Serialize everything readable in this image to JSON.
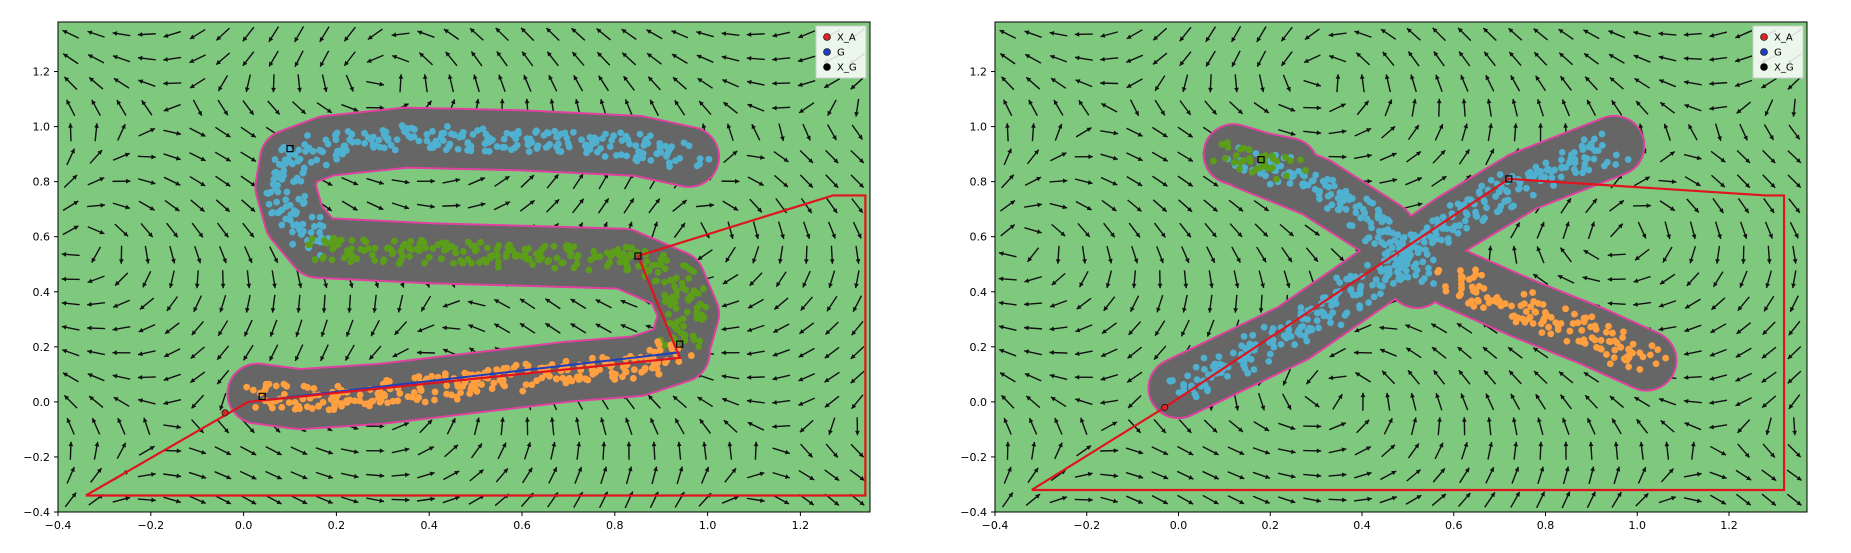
{
  "chart_data": [
    {
      "type": "scatter",
      "panel": "left",
      "title": "",
      "xlabel": "",
      "ylabel": "",
      "xlim": [
        -0.4,
        1.35
      ],
      "ylim": [
        -0.4,
        1.38
      ],
      "xticks": [
        -0.4,
        -0.2,
        0.0,
        0.2,
        0.4,
        0.6,
        0.8,
        1.0,
        1.2
      ],
      "yticks": [
        -0.4,
        -0.2,
        0.0,
        0.2,
        0.4,
        0.6,
        0.8,
        1.0,
        1.2
      ],
      "grid": false,
      "legend_position": "top-right",
      "legend": [
        {
          "label": "X_A",
          "color": "#d62728"
        },
        {
          "label": "G",
          "color": "#1f3fbf"
        },
        {
          "label": "X_G",
          "color": "#000000"
        }
      ],
      "background_color": "#7fc97f",
      "region_color": "#666666",
      "series": [
        {
          "color": "#4fb0d0",
          "spine": [
            [
              0.96,
              0.89
            ],
            [
              0.85,
              0.93
            ],
            [
              0.6,
              0.95
            ],
            [
              0.35,
              0.96
            ],
            [
              0.18,
              0.93
            ],
            [
              0.1,
              0.88
            ],
            [
              0.09,
              0.78
            ],
            [
              0.11,
              0.66
            ],
            [
              0.16,
              0.56
            ]
          ]
        },
        {
          "color": "#5c9e1a",
          "spine": [
            [
              0.16,
              0.56
            ],
            [
              0.4,
              0.54
            ],
            [
              0.62,
              0.53
            ],
            [
              0.82,
              0.52
            ],
            [
              0.93,
              0.44
            ],
            [
              0.96,
              0.32
            ],
            [
              0.94,
              0.2
            ]
          ]
        },
        {
          "color": "#ff9f3f",
          "spine": [
            [
              0.94,
              0.18
            ],
            [
              0.85,
              0.13
            ],
            [
              0.7,
              0.11
            ],
            [
              0.5,
              0.07
            ],
            [
              0.3,
              0.03
            ],
            [
              0.12,
              0.01
            ],
            [
              0.03,
              0.03
            ]
          ]
        }
      ],
      "red_path": [
        [
          -0.34,
          -0.34
        ],
        [
          0.01,
          0.0
        ],
        [
          0.94,
          0.16
        ],
        [
          0.85,
          0.53
        ],
        [
          1.27,
          0.75
        ],
        [
          1.34,
          0.75
        ],
        [
          1.34,
          -0.34
        ],
        [
          -0.34,
          -0.34
        ]
      ],
      "blue_path": [
        [
          0.01,
          0.0
        ],
        [
          0.94,
          0.18
        ]
      ],
      "x_a": [
        [
          -0.04,
          -0.04
        ]
      ],
      "x_g": [
        [
          0.1,
          0.92
        ],
        [
          0.85,
          0.53
        ],
        [
          0.94,
          0.21
        ],
        [
          0.04,
          0.02
        ]
      ]
    },
    {
      "type": "scatter",
      "panel": "right",
      "title": "",
      "xlabel": "",
      "ylabel": "",
      "xlim": [
        -0.4,
        1.37
      ],
      "ylim": [
        -0.4,
        1.38
      ],
      "xticks": [
        -0.4,
        -0.2,
        0.0,
        0.2,
        0.4,
        0.6,
        0.8,
        1.0,
        1.2
      ],
      "yticks": [
        -0.4,
        -0.2,
        0.0,
        0.2,
        0.4,
        0.6,
        0.8,
        1.0,
        1.2
      ],
      "grid": false,
      "legend_position": "top-right",
      "legend": [
        {
          "label": "X_A",
          "color": "#d62728"
        },
        {
          "label": "G",
          "color": "#1f3fbf"
        },
        {
          "label": "X_G",
          "color": "#000000"
        }
      ],
      "background_color": "#7fc97f",
      "region_color": "#666666",
      "series": [
        {
          "color": "#4fb0d0",
          "spine": [
            [
              0.0,
              0.05
            ],
            [
              0.25,
              0.25
            ],
            [
              0.45,
              0.48
            ],
            [
              0.6,
              0.65
            ],
            [
              0.75,
              0.8
            ],
            [
              0.95,
              0.93
            ]
          ]
        },
        {
          "color": "#4fb0d0",
          "spine": [
            [
              0.15,
              0.88
            ],
            [
              0.3,
              0.78
            ],
            [
              0.45,
              0.62
            ],
            [
              0.52,
              0.45
            ]
          ]
        },
        {
          "color": "#ff9f3f",
          "spine": [
            [
              0.6,
              0.45
            ],
            [
              0.75,
              0.34
            ],
            [
              0.9,
              0.24
            ],
            [
              1.02,
              0.15
            ]
          ]
        },
        {
          "color": "#5c9e1a",
          "spine": [
            [
              0.12,
              0.9
            ],
            [
              0.18,
              0.87
            ],
            [
              0.24,
              0.85
            ]
          ]
        }
      ],
      "red_path": [
        [
          -0.32,
          -0.32
        ],
        [
          -0.03,
          -0.02
        ],
        [
          0.72,
          0.81
        ],
        [
          1.28,
          0.75
        ],
        [
          1.32,
          0.75
        ],
        [
          1.32,
          -0.32
        ],
        [
          -0.32,
          -0.32
        ]
      ],
      "blue_path": [],
      "x_a": [
        [
          -0.03,
          -0.02
        ]
      ],
      "x_g": [
        [
          0.18,
          0.88
        ],
        [
          0.72,
          0.81
        ]
      ]
    }
  ]
}
